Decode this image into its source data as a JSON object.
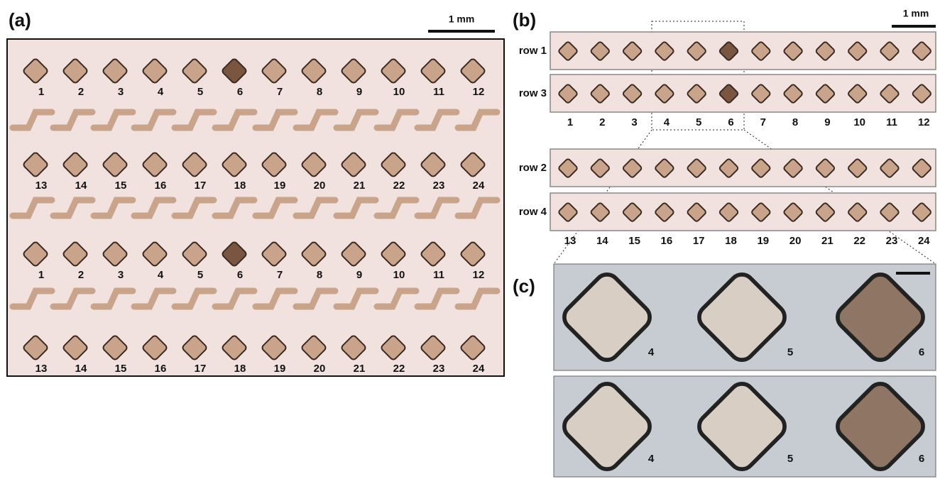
{
  "panel_a": {
    "label": "(a)",
    "scale_bar": "1 mm",
    "rows": [
      [
        "1",
        "2",
        "3",
        "4",
        "5",
        "6",
        "7",
        "8",
        "9",
        "10",
        "11",
        "12"
      ],
      [
        "13",
        "14",
        "15",
        "16",
        "17",
        "18",
        "19",
        "20",
        "21",
        "22",
        "23",
        "24"
      ],
      [
        "1",
        "2",
        "3",
        "4",
        "5",
        "6",
        "7",
        "8",
        "9",
        "10",
        "11",
        "12"
      ],
      [
        "13",
        "14",
        "15",
        "16",
        "17",
        "18",
        "19",
        "20",
        "21",
        "22",
        "23",
        "24"
      ]
    ]
  },
  "panel_b": {
    "label": "(b)",
    "scale_bar": "1 mm",
    "groups": [
      {
        "strips": [
          "row 1",
          "row 3"
        ],
        "numbers": [
          "1",
          "2",
          "3",
          "4",
          "5",
          "6",
          "7",
          "8",
          "9",
          "10",
          "11",
          "12"
        ]
      },
      {
        "strips": [
          "row 2",
          "row 4"
        ],
        "numbers": [
          "13",
          "14",
          "15",
          "16",
          "17",
          "18",
          "19",
          "20",
          "21",
          "22",
          "23",
          "24"
        ]
      }
    ]
  },
  "panel_c": {
    "label": "(c)",
    "rows": [
      [
        "4",
        "5",
        "6"
      ],
      [
        "4",
        "5",
        "6"
      ]
    ]
  }
}
